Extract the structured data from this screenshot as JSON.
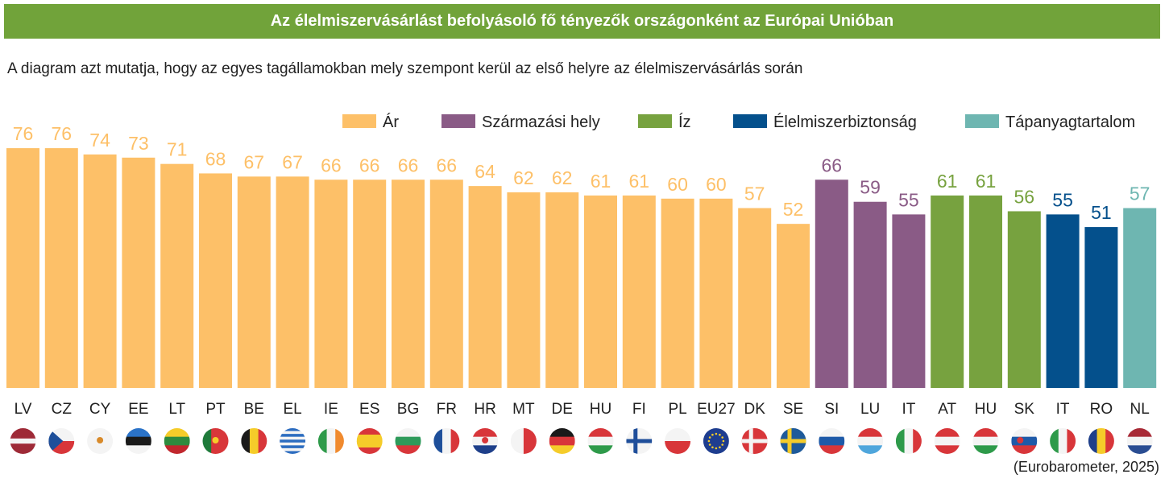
{
  "title": "Az élelmiszervásárlást befolyásoló fő tényezők országonként az Európai Unióban",
  "subtitle": "A diagram azt mutatja, hogy az egyes tagállamokban mely szempont kerül az első helyre az élelmiszervásárlás során",
  "source": "(Eurobarometer, 2025)",
  "chart_data": {
    "type": "bar",
    "title": "Az élelmiszervásárlást befolyásoló fő tényezők országonként az Európai Unióban",
    "legend_position": "top-right",
    "grid": false,
    "ylim": [
      0,
      80
    ],
    "legend": [
      {
        "name": "Ár",
        "color": "#FDC068"
      },
      {
        "name": "Származási hely",
        "color": "#8A5B86"
      },
      {
        "name": "Íz",
        "color": "#77A23F"
      },
      {
        "name": "Élelmiszerbiztonság",
        "color": "#04508C"
      },
      {
        "name": "Tápanyagtartalom",
        "color": "#6EB6B1"
      }
    ],
    "categories": [
      "LV",
      "CZ",
      "CY",
      "EE",
      "LT",
      "PT",
      "BE",
      "EL",
      "IE",
      "ES",
      "BG",
      "FR",
      "HR",
      "MT",
      "DE",
      "HU",
      "FI",
      "PL",
      "EU27",
      "DK",
      "SE",
      "SI",
      "LU",
      "IT",
      "AT",
      "HU",
      "SK",
      "IT",
      "RO",
      "NL"
    ],
    "values": [
      76,
      76,
      74,
      73,
      71,
      68,
      67,
      67,
      66,
      66,
      66,
      66,
      64,
      62,
      62,
      61,
      61,
      60,
      60,
      57,
      52,
      66,
      59,
      55,
      61,
      61,
      56,
      55,
      51,
      57
    ],
    "factor": [
      "Ár",
      "Ár",
      "Ár",
      "Ár",
      "Ár",
      "Ár",
      "Ár",
      "Ár",
      "Ár",
      "Ár",
      "Ár",
      "Ár",
      "Ár",
      "Ár",
      "Ár",
      "Ár",
      "Ár",
      "Ár",
      "Ár",
      "Ár",
      "Ár",
      "Származási hely",
      "Származási hely",
      "Származási hely",
      "Íz",
      "Íz",
      "Íz",
      "Élelmiszerbiztonság",
      "Élelmiszerbiztonság",
      "Tápanyagtartalom"
    ],
    "flag_icons": [
      "flag-lv",
      "flag-cz",
      "flag-cy",
      "flag-ee",
      "flag-lt",
      "flag-pt",
      "flag-be",
      "flag-el",
      "flag-ie",
      "flag-es",
      "flag-bg",
      "flag-fr",
      "flag-hr",
      "flag-mt",
      "flag-de",
      "flag-hu",
      "flag-fi",
      "flag-pl",
      "flag-eu",
      "flag-dk",
      "flag-se",
      "flag-si",
      "flag-lu",
      "flag-it",
      "flag-at",
      "flag-hu",
      "flag-sk",
      "flag-it",
      "flag-ro",
      "flag-nl"
    ]
  }
}
